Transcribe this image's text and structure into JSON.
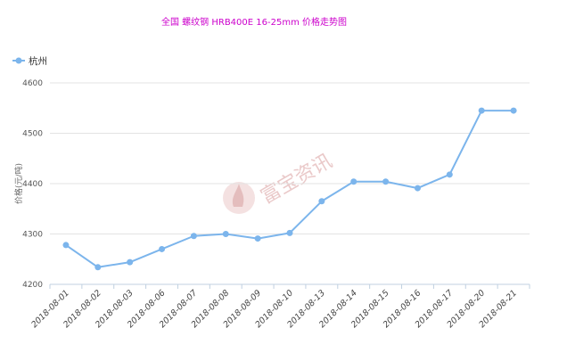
{
  "chart_data": {
    "type": "line",
    "title": "全国 螺纹钢 HRB400E 16-25mm 价格走势图",
    "ylabel": "价格(元/吨)",
    "xlabel": "",
    "ylim": [
      4200,
      4600
    ],
    "yticks": [
      4200,
      4300,
      4400,
      4500,
      4600
    ],
    "grid": true,
    "legend_position": "top-left",
    "categories": [
      "2018-08-01",
      "2018-08-02",
      "2018-08-03",
      "2018-08-06",
      "2018-08-07",
      "2018-08-08",
      "2018-08-09",
      "2018-08-10",
      "2018-08-13",
      "2018-08-14",
      "2018-08-15",
      "2018-08-16",
      "2018-08-17",
      "2018-08-20",
      "2018-08-21"
    ],
    "series": [
      {
        "name": "杭州",
        "color": "#7cb5ec",
        "values": [
          4278,
          4234,
          4244,
          4270,
          4296,
          4300,
          4291,
          4302,
          4365,
          4404,
          4404,
          4391,
          4418,
          4545,
          4545
        ]
      }
    ]
  },
  "watermark": {
    "text": "富宝资讯",
    "icon": "flame-logo"
  }
}
